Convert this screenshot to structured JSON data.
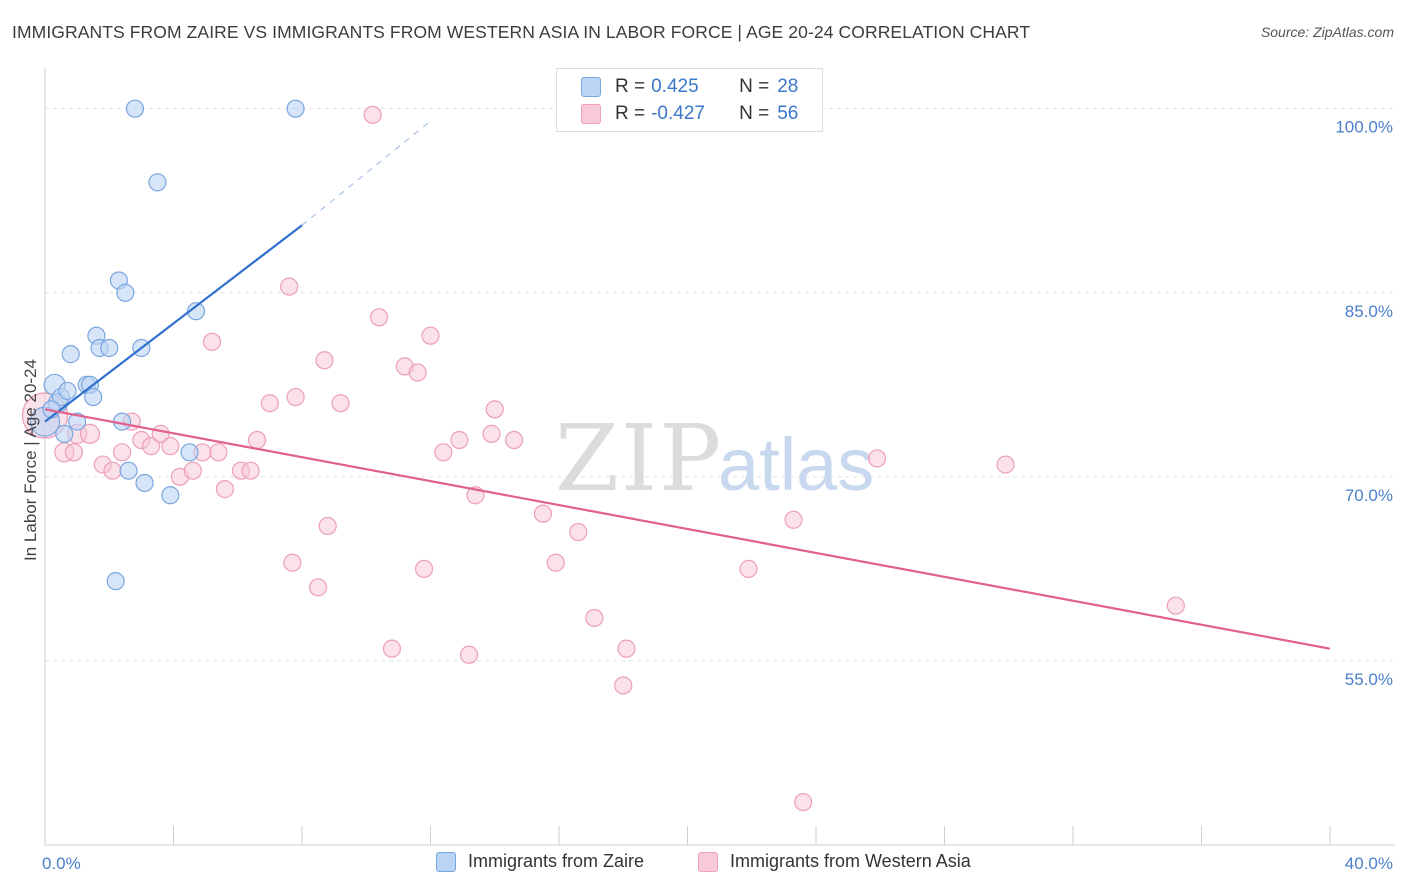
{
  "title": "IMMIGRANTS FROM ZAIRE VS IMMIGRANTS FROM WESTERN ASIA IN LABOR FORCE | AGE 20-24 CORRELATION CHART",
  "source": "Source: ZipAtlas.com",
  "watermark": {
    "zip": "ZIP",
    "atlas": "atlas"
  },
  "legend": {
    "zaire": {
      "r_label": "R =",
      "r_value": "0.425",
      "n_label": "N =",
      "n_value": "28"
    },
    "wasia": {
      "r_label": "R =",
      "r_value": "-0.427",
      "n_label": "N =",
      "n_value": "56"
    }
  },
  "colors": {
    "zaire_fill": "#bcd4f3",
    "zaire_stroke": "#7aa6de",
    "zaire_line": "#2f6fce",
    "wasia_fill": "#f8c9d7",
    "wasia_stroke": "#ec9fb8",
    "wasia_line": "#e0608e",
    "axis_text": "#4a7fc9",
    "grid": "#e2e2e2"
  },
  "chart_data": {
    "type": "scatter",
    "title": "IMMIGRANTS FROM ZAIRE VS IMMIGRANTS FROM WESTERN ASIA IN LABOR FORCE | AGE 20-24 CORRELATION CHART",
    "xlabel": "",
    "ylabel": "In Labor Force | Age 20-24",
    "xlim": [
      0,
      40
    ],
    "ylim": [
      40,
      102.5
    ],
    "x_tick_labels": [
      "0.0%",
      "40.0%"
    ],
    "y_ticks": [
      55,
      70,
      85,
      100
    ],
    "y_tick_labels": [
      "55.0%",
      "70.0%",
      "85.0%",
      "100.0%"
    ],
    "series": [
      {
        "name": "Immigrants from Zaire",
        "r": 0.425,
        "n": 28,
        "points": [
          [
            0.0,
            74.5,
            24
          ],
          [
            0.3,
            77.5,
            16
          ],
          [
            0.4,
            76.0,
            14
          ],
          [
            0.5,
            76.5,
            12
          ],
          [
            0.6,
            73.5,
            12
          ],
          [
            0.8,
            80.0,
            12
          ],
          [
            1.0,
            74.5,
            12
          ],
          [
            1.3,
            77.5,
            12
          ],
          [
            1.4,
            77.5,
            12
          ],
          [
            1.5,
            76.5,
            12
          ],
          [
            1.6,
            81.5,
            12
          ],
          [
            1.7,
            80.5,
            12
          ],
          [
            2.0,
            80.5,
            12
          ],
          [
            2.2,
            61.5,
            12
          ],
          [
            2.3,
            86.0,
            12
          ],
          [
            2.5,
            85.0,
            12
          ],
          [
            2.4,
            74.5,
            12
          ],
          [
            2.6,
            70.5,
            12
          ],
          [
            2.8,
            100.0,
            12
          ],
          [
            3.0,
            80.5,
            12
          ],
          [
            3.1,
            69.5,
            12
          ],
          [
            3.5,
            94.0,
            12
          ],
          [
            3.9,
            68.5,
            12
          ],
          [
            4.5,
            72.0,
            12
          ],
          [
            4.7,
            83.5,
            12
          ],
          [
            7.8,
            100.0,
            12
          ],
          [
            0.2,
            75.5,
            12
          ],
          [
            0.7,
            77.0,
            12
          ]
        ]
      },
      {
        "name": "Immigrants from Western Asia",
        "r": -0.427,
        "n": 56,
        "points": [
          [
            0.0,
            75.0,
            40
          ],
          [
            0.6,
            72.0,
            14
          ],
          [
            1.0,
            73.5,
            14
          ],
          [
            1.4,
            73.5,
            14
          ],
          [
            1.8,
            71.0,
            12
          ],
          [
            2.1,
            70.5,
            12
          ],
          [
            2.4,
            72.0,
            12
          ],
          [
            2.7,
            74.5,
            12
          ],
          [
            3.0,
            73.0,
            12
          ],
          [
            3.3,
            72.5,
            12
          ],
          [
            3.6,
            73.5,
            12
          ],
          [
            3.9,
            72.5,
            12
          ],
          [
            4.2,
            70.0,
            12
          ],
          [
            4.6,
            70.5,
            12
          ],
          [
            4.9,
            72.0,
            12
          ],
          [
            5.4,
            72.0,
            12
          ],
          [
            5.6,
            69.0,
            12
          ],
          [
            6.1,
            70.5,
            12
          ],
          [
            6.4,
            70.5,
            12
          ],
          [
            6.6,
            73.0,
            12
          ],
          [
            7.0,
            76.0,
            12
          ],
          [
            7.6,
            85.5,
            12
          ],
          [
            7.7,
            63.0,
            12
          ],
          [
            7.8,
            76.5,
            12
          ],
          [
            8.5,
            61.0,
            12
          ],
          [
            8.7,
            79.5,
            12
          ],
          [
            8.8,
            66.0,
            12
          ],
          [
            9.2,
            76.0,
            12
          ],
          [
            10.2,
            99.5,
            12
          ],
          [
            10.4,
            83.0,
            12
          ],
          [
            10.8,
            56.0,
            12
          ],
          [
            11.2,
            79.0,
            12
          ],
          [
            11.6,
            78.5,
            12
          ],
          [
            11.8,
            62.5,
            12
          ],
          [
            12.0,
            81.5,
            12
          ],
          [
            12.4,
            72.0,
            12
          ],
          [
            12.9,
            73.0,
            12
          ],
          [
            13.2,
            55.5,
            12
          ],
          [
            13.4,
            68.5,
            12
          ],
          [
            13.9,
            73.5,
            12
          ],
          [
            14.0,
            75.5,
            12
          ],
          [
            14.6,
            73.0,
            12
          ],
          [
            15.5,
            67.0,
            12
          ],
          [
            15.9,
            63.0,
            12
          ],
          [
            16.6,
            65.5,
            12
          ],
          [
            17.1,
            58.5,
            12
          ],
          [
            18.0,
            53.0,
            12
          ],
          [
            18.1,
            56.0,
            12
          ],
          [
            21.9,
            62.5,
            12
          ],
          [
            23.3,
            66.5,
            12
          ],
          [
            23.6,
            43.5,
            12
          ],
          [
            25.9,
            71.5,
            12
          ],
          [
            29.9,
            71.0,
            12
          ],
          [
            35.2,
            59.5,
            12
          ],
          [
            5.2,
            81.0,
            12
          ],
          [
            0.9,
            72.0,
            12
          ]
        ]
      }
    ],
    "trend_lines": [
      {
        "series": "Immigrants from Zaire",
        "x": [
          0.0,
          8.0
        ],
        "y": [
          74.5,
          90.5
        ],
        "dashed_extension_x": [
          8.0,
          12.0
        ],
        "dashed_extension_y": [
          90.5,
          99.0
        ]
      },
      {
        "series": "Immigrants from Western Asia",
        "x": [
          0.0,
          40.0
        ],
        "y": [
          75.5,
          56.0
        ]
      }
    ],
    "legend_position": "top-center"
  }
}
